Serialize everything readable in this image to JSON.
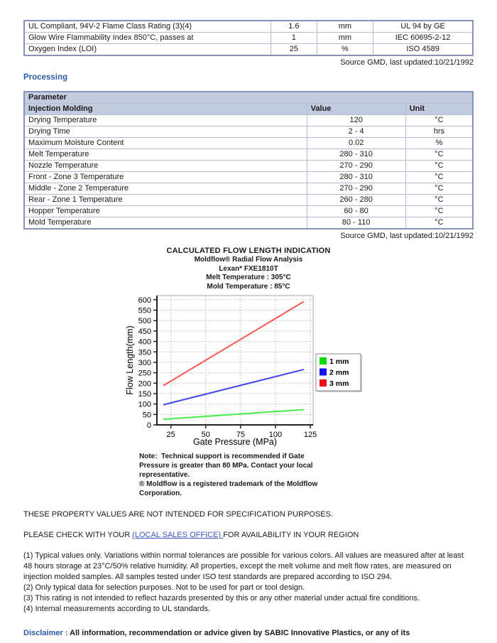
{
  "flame_table": {
    "rows": [
      {
        "property": "UL Compliant, 94V-2 Flame Class Rating (3)(4)",
        "value": "1.6",
        "unit": "mm",
        "standard": "UL 94 by GE"
      },
      {
        "property": "Glow Wire Flammability Index 850°C, passes at",
        "value": "1",
        "unit": "mm",
        "standard": "IEC 60695-2-12"
      },
      {
        "property": "Oxygen Index (LOI)",
        "value": "25",
        "unit": "%",
        "standard": "ISO 4589"
      }
    ],
    "source": "Source GMD, last updated:10/21/1992"
  },
  "processing_heading": "Processing",
  "processing_table": {
    "header_group": "Parameter",
    "headers": {
      "parameter": "Injection Molding",
      "value": "Value",
      "unit": "Unit"
    },
    "rows": [
      {
        "parameter": "Drying Temperature",
        "value": "120",
        "unit": "°C"
      },
      {
        "parameter": "Drying Time",
        "value": "2 - 4",
        "unit": "hrs"
      },
      {
        "parameter": "Maximum Moisture Content",
        "value": "0.02",
        "unit": "%"
      },
      {
        "parameter": "Melt Temperature",
        "value": "280 - 310",
        "unit": "°C"
      },
      {
        "parameter": "Nozzle Temperature",
        "value": "270 - 290",
        "unit": "°C"
      },
      {
        "parameter": "Front - Zone 3 Temperature",
        "value": "280 - 310",
        "unit": "°C"
      },
      {
        "parameter": "Middle - Zone 2 Temperature",
        "value": "270 - 290",
        "unit": "°C"
      },
      {
        "parameter": "Rear - Zone 1 Temperature",
        "value": "260 - 280",
        "unit": "°C"
      },
      {
        "parameter": "Hopper Temperature",
        "value": "60 - 80",
        "unit": "°C"
      },
      {
        "parameter": "Mold Temperature",
        "value": "80 - 110",
        "unit": "°C"
      }
    ],
    "source": "Source GMD, last updated:10/21/1992"
  },
  "chart_data": {
    "type": "line",
    "title": "CALCULATED FLOW LENGTH INDICATION",
    "subtitle_lines": [
      "Moldflow® Radial Flow Analysis",
      "Lexan*  FXE1810T",
      "Melt Temperature : 305°C",
      "Mold Temperature : 85°C"
    ],
    "xlabel": "Gate Pressure (MPa)",
    "ylabel": "Flow Length(mm)",
    "xlim": [
      15,
      127
    ],
    "ylim": [
      0,
      620
    ],
    "xticks": [
      25,
      50,
      75,
      100,
      125
    ],
    "yticks": [
      0,
      50,
      100,
      150,
      200,
      250,
      300,
      350,
      400,
      450,
      500,
      550,
      600
    ],
    "grid": true,
    "legend_position": "right",
    "series": [
      {
        "name": "1 mm",
        "line_color": "#44ee44",
        "legend_color": "#00dd00",
        "x": [
          20,
          120
        ],
        "y": [
          27,
          73
        ]
      },
      {
        "name": "2 mm",
        "line_color": "#4444ee",
        "legend_color": "#1111ee",
        "x": [
          20,
          120
        ],
        "y": [
          97,
          265
        ]
      },
      {
        "name": "3 mm",
        "line_color": "#ff5555",
        "legend_color": "#ee1111",
        "x": [
          20,
          120
        ],
        "y": [
          190,
          590
        ]
      }
    ],
    "note_lines": [
      "Note:  Technical support is recommended if Gate",
      "Pressure is greater than 80 MPa. Contact your local",
      "representative.",
      "® Moldflow is a registered trademark of the Moldflow",
      "Corporation."
    ]
  },
  "statements": {
    "spec_purpose": "THESE PROPERTY VALUES ARE NOT INTENDED FOR SPECIFICATION PURPOSES.",
    "check_prefix": "PLEASE CHECK WITH YOUR ",
    "check_link": "(LOCAL SALES OFFICE) ",
    "check_suffix": "FOR AVAILABILITY IN YOUR REGION"
  },
  "footnotes": [
    "(1) Typical values only. Variations within normal tolerances are possible for various colors. All values are measured after at least 48 hours storage at 23°C/50% relative humidity. All properties, except the melt volume and melt flow rates, are measured on injection molded samples. All samples tested under ISO test standards are prepared according to ISO 294.",
    "(2) Only typical data for selection purposes. Not to be used for part or tool design.",
    "(3) This rating is not intended to reflect hazards presented by this or any other material under actual fire conditions.",
    "(4) Internal measurements according to UL standards."
  ],
  "disclaimer": {
    "label": "Disclaimer :",
    "text": " All information, recommendation or advice given by SABIC Innovative Plastics, or any of its"
  },
  "colors": {
    "heading_blue": "#2d5da8",
    "link_blue": "#3a55c8",
    "table_header_bg": "#c3cbde",
    "table_border": "#8494bd"
  }
}
